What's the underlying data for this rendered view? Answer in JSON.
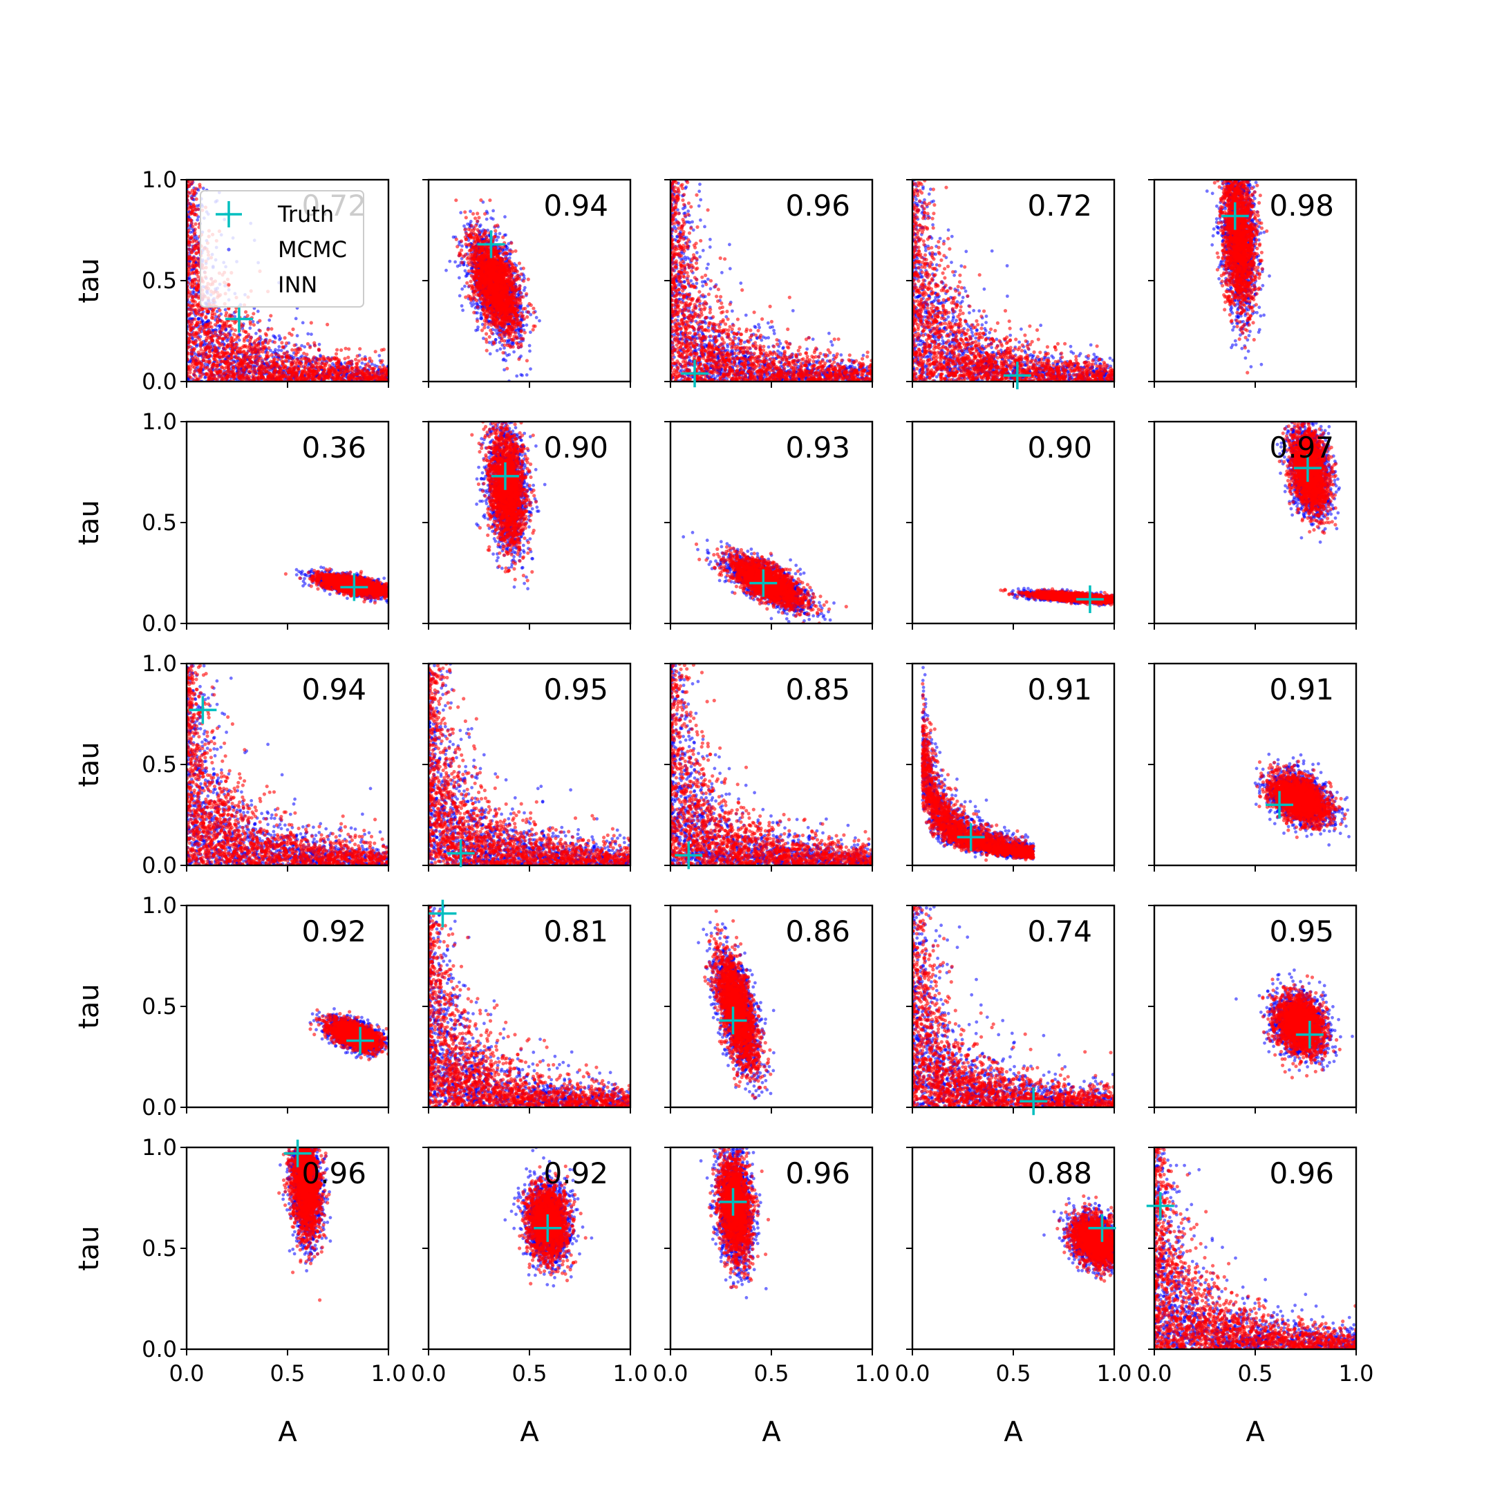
{
  "colors": {
    "truth": "#00bfbf",
    "mcmc": "#0000ff",
    "inn": "#ff0000",
    "axes": "#000000",
    "background": "#ffffff"
  },
  "legend": {
    "placement": "top-left of first panel",
    "entries": [
      {
        "label": "Truth",
        "marker": "plus",
        "color": "#00bfbf"
      },
      {
        "label": "MCMC",
        "marker": "dot",
        "color": "#0000ff"
      },
      {
        "label": "INN",
        "marker": "dot",
        "color": "#ff0000"
      }
    ]
  },
  "chart_data": {
    "type": "scatter",
    "grid": "5x5",
    "xlabel": "A",
    "ylabel": "tau",
    "xlim": [
      0,
      1
    ],
    "ylim": [
      0,
      1
    ],
    "xticks": [
      "0.0",
      "0.5",
      "1.0"
    ],
    "yticks": [
      "0.0",
      "0.5",
      "1.0"
    ],
    "grid_lines": false,
    "series_names": [
      "Truth",
      "MCMC",
      "INN"
    ],
    "panels": [
      {
        "row": 0,
        "col": 0,
        "score": "0.72",
        "truth": [
          0.26,
          0.31
        ],
        "shape": "banana"
      },
      {
        "row": 0,
        "col": 1,
        "score": "0.94",
        "truth": [
          0.31,
          0.68
        ],
        "shape": "blob",
        "center": [
          0.33,
          0.48
        ],
        "spread": [
          0.06,
          0.12
        ],
        "corr": -0.5
      },
      {
        "row": 0,
        "col": 2,
        "score": "0.96",
        "truth": [
          0.12,
          0.04
        ],
        "shape": "banana"
      },
      {
        "row": 0,
        "col": 3,
        "score": "0.72",
        "truth": [
          0.52,
          0.03
        ],
        "shape": "banana"
      },
      {
        "row": 0,
        "col": 4,
        "score": "0.98",
        "truth": [
          0.4,
          0.82
        ],
        "shape": "blob",
        "center": [
          0.42,
          0.72
        ],
        "spread": [
          0.04,
          0.18
        ],
        "corr": -0.2
      },
      {
        "row": 1,
        "col": 0,
        "score": "0.36",
        "truth": [
          0.83,
          0.18
        ],
        "shape": "blob",
        "center": [
          0.82,
          0.19
        ],
        "spread": [
          0.08,
          0.025
        ],
        "corr": -0.6
      },
      {
        "row": 1,
        "col": 1,
        "score": "0.90",
        "truth": [
          0.38,
          0.73
        ],
        "shape": "blob",
        "center": [
          0.39,
          0.67
        ],
        "spread": [
          0.045,
          0.14
        ],
        "corr": -0.2
      },
      {
        "row": 1,
        "col": 2,
        "score": "0.93",
        "truth": [
          0.46,
          0.2
        ],
        "shape": "blob",
        "center": [
          0.48,
          0.2
        ],
        "spread": [
          0.09,
          0.06
        ],
        "corr": -0.7
      },
      {
        "row": 1,
        "col": 3,
        "score": "0.90",
        "truth": [
          0.88,
          0.12
        ],
        "shape": "blob",
        "center": [
          0.8,
          0.13
        ],
        "spread": [
          0.1,
          0.012
        ],
        "corr": -0.6
      },
      {
        "row": 1,
        "col": 4,
        "score": "0.97",
        "truth": [
          0.76,
          0.77
        ],
        "shape": "blob",
        "center": [
          0.77,
          0.76
        ],
        "spread": [
          0.045,
          0.1
        ],
        "corr": -0.3
      },
      {
        "row": 2,
        "col": 0,
        "score": "0.94",
        "truth": [
          0.08,
          0.77
        ],
        "shape": "banana"
      },
      {
        "row": 2,
        "col": 1,
        "score": "0.95",
        "truth": [
          0.16,
          0.06
        ],
        "shape": "banana"
      },
      {
        "row": 2,
        "col": 2,
        "score": "0.85",
        "truth": [
          0.09,
          0.05
        ],
        "shape": "banana"
      },
      {
        "row": 2,
        "col": 3,
        "score": "0.91",
        "truth": [
          0.29,
          0.14
        ],
        "shape": "banana-short"
      },
      {
        "row": 2,
        "col": 4,
        "score": "0.91",
        "truth": [
          0.62,
          0.3
        ],
        "shape": "blob",
        "center": [
          0.72,
          0.33
        ],
        "spread": [
          0.07,
          0.06
        ],
        "corr": -0.4
      },
      {
        "row": 3,
        "col": 0,
        "score": "0.92",
        "truth": [
          0.86,
          0.33
        ],
        "shape": "blob",
        "center": [
          0.83,
          0.36
        ],
        "spread": [
          0.06,
          0.035
        ],
        "corr": -0.5
      },
      {
        "row": 3,
        "col": 1,
        "score": "0.81",
        "truth": [
          0.07,
          0.96
        ],
        "shape": "banana"
      },
      {
        "row": 3,
        "col": 2,
        "score": "0.86",
        "truth": [
          0.31,
          0.43
        ],
        "shape": "blob",
        "center": [
          0.33,
          0.48
        ],
        "spread": [
          0.05,
          0.14
        ],
        "corr": -0.6
      },
      {
        "row": 3,
        "col": 3,
        "score": "0.74",
        "truth": [
          0.6,
          0.03
        ],
        "shape": "banana"
      },
      {
        "row": 3,
        "col": 4,
        "score": "0.95",
        "truth": [
          0.77,
          0.36
        ],
        "shape": "blob",
        "center": [
          0.72,
          0.41
        ],
        "spread": [
          0.06,
          0.07
        ],
        "corr": -0.2
      },
      {
        "row": 4,
        "col": 0,
        "score": "0.96",
        "truth": [
          0.55,
          0.97
        ],
        "shape": "blob",
        "center": [
          0.59,
          0.82
        ],
        "spread": [
          0.035,
          0.13
        ],
        "corr": -0.2
      },
      {
        "row": 4,
        "col": 1,
        "score": "0.92",
        "truth": [
          0.59,
          0.6
        ],
        "shape": "blob",
        "center": [
          0.59,
          0.63
        ],
        "spread": [
          0.05,
          0.09
        ],
        "corr": -0.1
      },
      {
        "row": 4,
        "col": 2,
        "score": "0.96",
        "truth": [
          0.31,
          0.73
        ],
        "shape": "blob",
        "center": [
          0.32,
          0.7
        ],
        "spread": [
          0.04,
          0.13
        ],
        "corr": -0.2
      },
      {
        "row": 4,
        "col": 3,
        "score": "0.88",
        "truth": [
          0.94,
          0.6
        ],
        "shape": "blob",
        "center": [
          0.91,
          0.54
        ],
        "spread": [
          0.06,
          0.06
        ],
        "corr": -0.3
      },
      {
        "row": 4,
        "col": 4,
        "score": "0.96",
        "truth": [
          0.03,
          0.71
        ],
        "shape": "banana"
      }
    ]
  }
}
